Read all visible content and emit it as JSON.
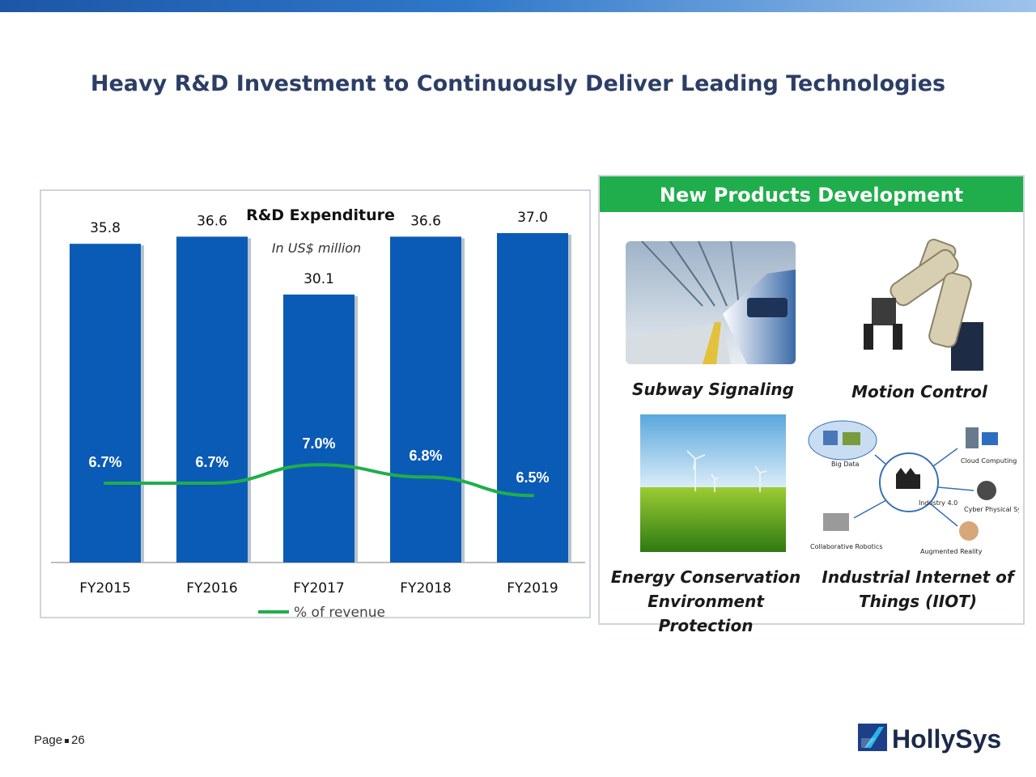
{
  "title": "Heavy R&D Investment to Continuously Deliver Leading Technologies",
  "chart_data": {
    "type": "bar",
    "title": "R&D Expenditure",
    "subtitle": "In US$ million",
    "categories": [
      "FY2015",
      "FY2016",
      "FY2017",
      "FY2018",
      "FY2019"
    ],
    "series": [
      {
        "values": [
          35.8,
          36.6,
          30.1,
          36.6,
          37.0
        ],
        "labels": [
          "35.8",
          "36.6",
          "30.1",
          "36.6",
          "37.0"
        ],
        "color": "#0a5bb5"
      },
      {
        "name": "% of revenue",
        "type": "line",
        "values": [
          6.7,
          6.7,
          7.0,
          6.8,
          6.5
        ],
        "labels": [
          "6.7%",
          "6.7%",
          "7.0%",
          "6.8%",
          "6.5%"
        ],
        "color": "#1fae4b"
      }
    ],
    "legend": "bottom",
    "grid": false
  },
  "products": {
    "header": "New Products Development",
    "items": [
      {
        "label": "Subway Signaling",
        "icon": "subway-train-photo"
      },
      {
        "label": "Motion Control",
        "icon": "robot-arm-photo"
      },
      {
        "label_line1": "Energy Conservation",
        "label_line2": "Environment Protection",
        "icon": "wind-turbine-photo"
      },
      {
        "label_line1": "Industrial Internet of",
        "label_line2": "Things (IIOT)",
        "icon": "iiot-diagram",
        "diagram_labels": [
          "Big Data",
          "Cloud Computing",
          "Industry 4.0",
          "Cyber Physical Systems",
          "Collaborative Robotics",
          "Augmented Reality"
        ]
      }
    ]
  },
  "footer": {
    "page_label": "Page",
    "page_number": "26"
  },
  "logo": {
    "text": "HollySys"
  }
}
